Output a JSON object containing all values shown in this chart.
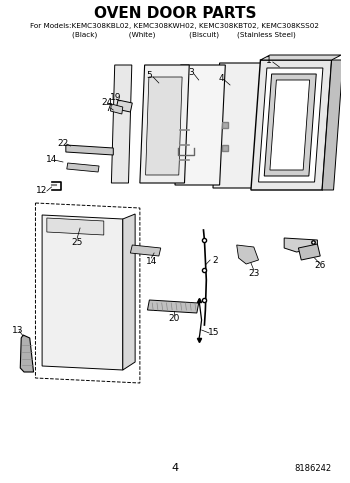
{
  "title": "OVEN DOOR PARTS",
  "subtitle_line1": "For Models:KEMC308KBL02, KEMC308KWH02, KEMC308KBT02, KEMC308KSS02",
  "subtitle_line2": "        (Black)              (White)               (Biscuit)        (Stainless Steel)",
  "page_number": "4",
  "part_number": "8186242",
  "bg_color": "#ffffff",
  "line_color": "#000000",
  "title_fontsize": 11,
  "subtitle_fontsize": 5.2,
  "label_fontsize": 6.5
}
